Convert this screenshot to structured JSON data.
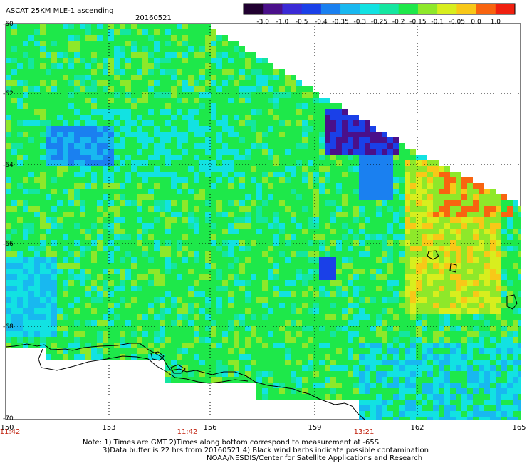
{
  "header": {
    "title": "ASCAT 25KM MLE-1 ascending",
    "date": "20160521"
  },
  "colorbar": {
    "labels": [
      "-3.0",
      "-1.0",
      "-0.5",
      "-0.4",
      "-0.35",
      "-0.3",
      "-0.25",
      "-0.2",
      "-0.15",
      "-0.1",
      "-0.05",
      "0.0",
      "1.0"
    ],
    "colors": [
      "#200030",
      "#4a108a",
      "#3a2ad6",
      "#1a40e8",
      "#1a80f0",
      "#18b8f0",
      "#12e2e2",
      "#14e6a0",
      "#1ee84a",
      "#8ee82a",
      "#d8ee1e",
      "#f8c818",
      "#f86410",
      "#f02010"
    ]
  },
  "axes": {
    "lat_labels": [
      "-60",
      "-62",
      "-64",
      "-66",
      "-68",
      "-70"
    ],
    "lon_labels": [
      "150",
      "153",
      "156",
      "159",
      "162",
      "165"
    ]
  },
  "times": [
    "11:42",
    "11:42",
    "13:21"
  ],
  "notes": {
    "line1": "Note: 1) Times are GMT 2)Times along bottom correspond to measurement at -65S",
    "line2": "3)Data buffer is 22 hrs from 20160521 4) Black wind barbs indicate possible contamination",
    "line3": "NOAA/NESDIS/Center for Satellite Applications and Research"
  }
}
